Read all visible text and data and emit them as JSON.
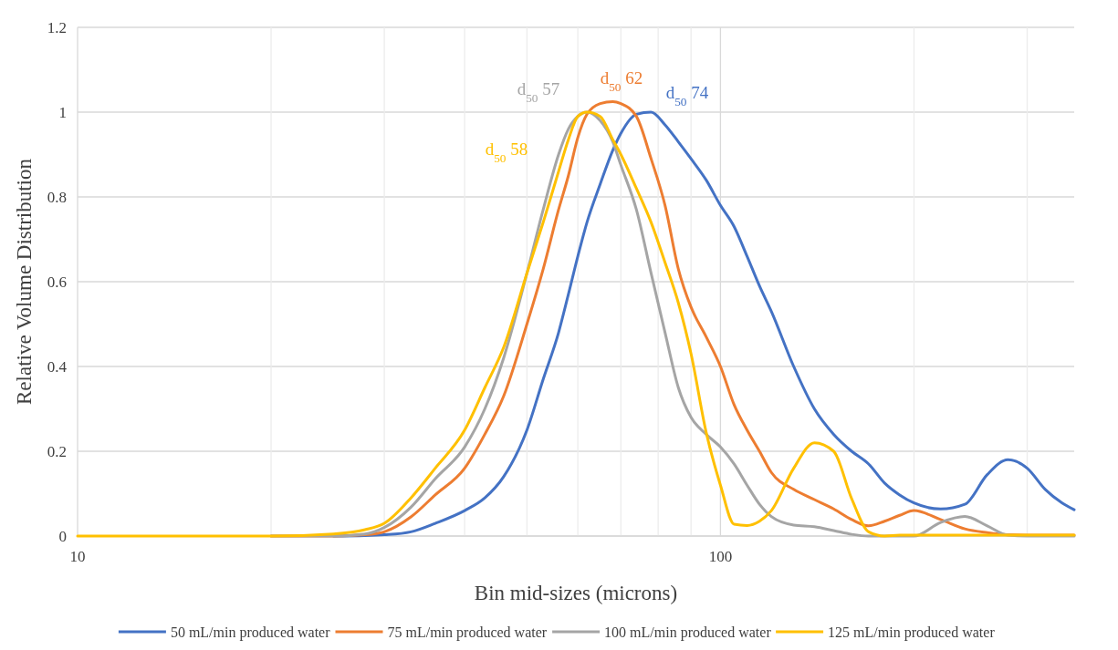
{
  "chart_data": {
    "type": "line",
    "xlabel": "Bin mid-sizes (microns)",
    "ylabel": "Relative Volume Distribution",
    "log": "x",
    "xlim": [
      10,
      355
    ],
    "xticks": [
      10,
      {
        "value": 20,
        "label": null
      },
      {
        "value": 30,
        "label": null
      },
      {
        "value": 40,
        "label": null
      },
      {
        "value": 50,
        "label": null
      },
      {
        "value": 60,
        "label": null
      },
      {
        "value": 70,
        "label": null
      },
      {
        "value": 80,
        "label": null
      },
      {
        "value": 90,
        "label": null
      },
      100,
      {
        "value": 200,
        "label": null
      },
      {
        "value": 300,
        "label": null
      }
    ],
    "ylim": [
      0,
      1.2
    ],
    "yticks": [
      0,
      0.2,
      0.4,
      0.6,
      0.8,
      1,
      1.2
    ],
    "grid": true,
    "legend": "bottom",
    "marker": "none",
    "line_style": "solid",
    "x": [
      10,
      15,
      20,
      25,
      28,
      30,
      33,
      36,
      40,
      43,
      46,
      50,
      53,
      56,
      58,
      60,
      62,
      65,
      68,
      70,
      74,
      78,
      82,
      86,
      90,
      95,
      100,
      105,
      110,
      115,
      120,
      130,
      140,
      150,
      160,
      170,
      180,
      190,
      200,
      220,
      240,
      260,
      280,
      300,
      320,
      340,
      355
    ],
    "series": [
      {
        "name": "50 mL/min produced water",
        "color": "#4472c4",
        "values": [
          null,
          null,
          null,
          0,
          0.001,
          0.003,
          0.01,
          0.03,
          0.06,
          0.09,
          0.14,
          0.25,
          0.37,
          0.48,
          0.57,
          0.66,
          0.74,
          0.83,
          0.91,
          0.95,
          0.995,
          1.0,
          0.97,
          0.93,
          0.89,
          0.84,
          0.78,
          0.73,
          0.66,
          0.59,
          0.53,
          0.4,
          0.3,
          0.24,
          0.2,
          0.17,
          0.125,
          0.097,
          0.078,
          0.064,
          0.075,
          0.145,
          0.18,
          0.16,
          0.11,
          0.078,
          0.062
        ]
      },
      {
        "name": "75 mL/min produced water",
        "color": "#ed7d31",
        "values": [
          null,
          null,
          0,
          0,
          0.003,
          0.01,
          0.045,
          0.097,
          0.16,
          0.24,
          0.33,
          0.5,
          0.63,
          0.77,
          0.85,
          0.94,
          0.995,
          1.02,
          1.025,
          1.02,
          0.99,
          0.89,
          0.78,
          0.63,
          0.54,
          0.47,
          0.4,
          0.31,
          0.25,
          0.2,
          0.15,
          0.11,
          0.086,
          0.064,
          0.039,
          0.024,
          0.035,
          0.049,
          0.06,
          0.039,
          0.017,
          0.008,
          0.003,
          0.002,
          0.002,
          0.002,
          0.002
        ]
      },
      {
        "name": "100 mL/min produced water",
        "color": "#a5a5a5",
        "values": [
          null,
          null,
          0,
          0,
          0.005,
          0.02,
          0.068,
          0.135,
          0.21,
          0.3,
          0.42,
          0.62,
          0.77,
          0.9,
          0.96,
          0.99,
          1.0,
          0.98,
          0.93,
          0.875,
          0.77,
          0.62,
          0.48,
          0.35,
          0.28,
          0.24,
          0.21,
          0.17,
          0.12,
          0.075,
          0.046,
          0.026,
          0.022,
          0.013,
          0.004,
          0,
          0,
          0,
          0,
          0.032,
          0.046,
          0.024,
          0.002,
          0,
          0,
          0,
          0
        ]
      },
      {
        "name": "125 mL/min produced water",
        "color": "#ffc000",
        "values": [
          0,
          0,
          0,
          0.005,
          0.015,
          0.03,
          0.09,
          0.16,
          0.25,
          0.35,
          0.445,
          0.62,
          0.74,
          0.86,
          0.935,
          0.99,
          1.0,
          0.99,
          0.935,
          0.9,
          0.82,
          0.74,
          0.645,
          0.55,
          0.43,
          0.245,
          0.12,
          0.028,
          0.025,
          0.035,
          0.06,
          0.16,
          0.22,
          0.2,
          0.088,
          0.01,
          0,
          0.002,
          0.002,
          0.002,
          0.002,
          0.002,
          0.002,
          0.002,
          0.002,
          0.002,
          0.002
        ]
      }
    ],
    "annotations": [
      "d$_{50}$ 74",
      "d$_{50}$ 62",
      "d$_{50}$ 57",
      "d$_{50}$ 58"
    ]
  }
}
